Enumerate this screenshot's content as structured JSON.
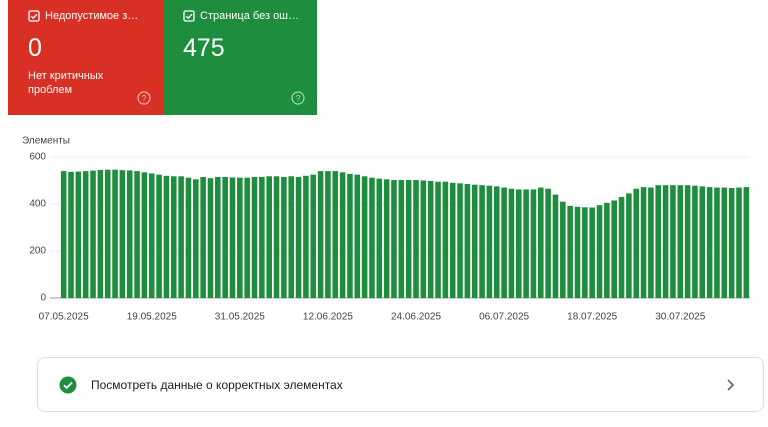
{
  "cards": [
    {
      "title": "Недопустимое з…",
      "value": "0",
      "subtitle": "Нет критичных проблем"
    },
    {
      "title": "Страница без ош…",
      "value": "475"
    }
  ],
  "chart_data": {
    "type": "bar",
    "y_label": "Элементы",
    "color": "#1e8e3e",
    "categories": [
      "07.05.2025",
      null,
      null,
      null,
      null,
      null,
      null,
      null,
      null,
      null,
      null,
      null,
      "19.05.2025",
      null,
      null,
      null,
      null,
      null,
      null,
      null,
      null,
      null,
      null,
      null,
      "31.05.2025",
      null,
      null,
      null,
      null,
      null,
      null,
      null,
      null,
      null,
      null,
      null,
      "12.06.2025",
      null,
      null,
      null,
      null,
      null,
      null,
      null,
      null,
      null,
      null,
      null,
      "24.06.2025",
      null,
      null,
      null,
      null,
      null,
      null,
      null,
      null,
      null,
      null,
      null,
      "06.07.2025",
      null,
      null,
      null,
      null,
      null,
      null,
      null,
      null,
      null,
      null,
      null,
      "18.07.2025",
      null,
      null,
      null,
      null,
      null,
      null,
      null,
      null,
      null,
      null,
      null,
      "30.07.2025",
      null,
      null,
      null,
      null,
      null,
      null,
      null,
      null,
      null
    ],
    "values": [
      540,
      537,
      538,
      540,
      542,
      545,
      546,
      546,
      544,
      543,
      540,
      535,
      530,
      525,
      520,
      518,
      518,
      512,
      505,
      515,
      510,
      515,
      515,
      513,
      512,
      512,
      515,
      515,
      518,
      518,
      515,
      518,
      515,
      520,
      525,
      540,
      540,
      540,
      535,
      528,
      525,
      518,
      512,
      508,
      505,
      502,
      502,
      502,
      502,
      500,
      498,
      495,
      495,
      490,
      488,
      485,
      482,
      480,
      478,
      475,
      470,
      465,
      462,
      462,
      462,
      470,
      465,
      440,
      410,
      392,
      388,
      386,
      385,
      395,
      405,
      415,
      430,
      445,
      465,
      472,
      470,
      480,
      480,
      480,
      480,
      480,
      478,
      475,
      472,
      470,
      470,
      468,
      470,
      472
    ],
    "ylim": [
      0,
      600
    ],
    "yticks": [
      0,
      200,
      400,
      600
    ],
    "grid": true
  },
  "link": {
    "text": "Посмотреть данные о корректных элементах"
  }
}
